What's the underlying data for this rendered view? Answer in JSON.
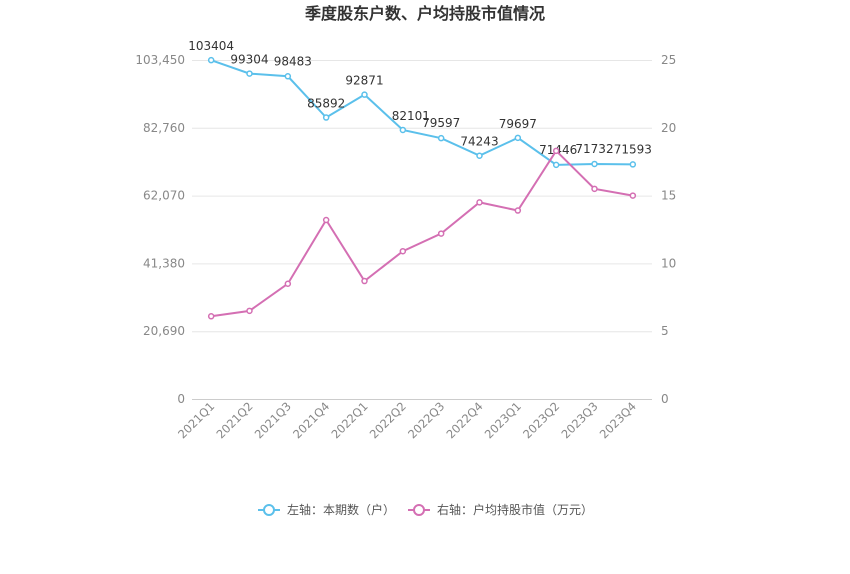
{
  "chart_data": {
    "type": "line",
    "title": "季度股东户数、户均持股市值情况",
    "categories": [
      "2021Q1",
      "2021Q2",
      "2021Q3",
      "2021Q4",
      "2022Q1",
      "2022Q2",
      "2022Q3",
      "2022Q4",
      "2023Q1",
      "2023Q2",
      "2023Q3",
      "2023Q4"
    ],
    "left_axis": {
      "ticks": [
        "0",
        "20,690",
        "41,380",
        "62,070",
        "82,760",
        "103,450"
      ],
      "ylim": [
        0,
        103450
      ]
    },
    "right_axis": {
      "ticks": [
        "0",
        "5",
        "10",
        "15",
        "20",
        "25"
      ],
      "ylim": [
        0,
        25
      ]
    },
    "grid": true,
    "legend_position": "bottom",
    "series": [
      {
        "name": "左轴：本期数（户）",
        "axis": "left",
        "color": "#5bc0eb",
        "values": [
          103404,
          99304,
          98483,
          85892,
          92871,
          82101,
          79597,
          74243,
          79697,
          71446,
          71732,
          71593
        ],
        "labels": [
          "103404",
          "99304",
          "98483",
          "85892",
          "92871",
          "82101",
          "79597",
          "74243",
          "79697",
          "71446",
          "71732",
          "71593"
        ]
      },
      {
        "name": "右轴：户均持股市值（万元）",
        "axis": "right",
        "color": "#d46fb3",
        "values": [
          6.1,
          6.5,
          8.5,
          13.2,
          8.7,
          10.9,
          12.2,
          14.5,
          13.9,
          18.3,
          15.5,
          15.0
        ]
      }
    ]
  }
}
